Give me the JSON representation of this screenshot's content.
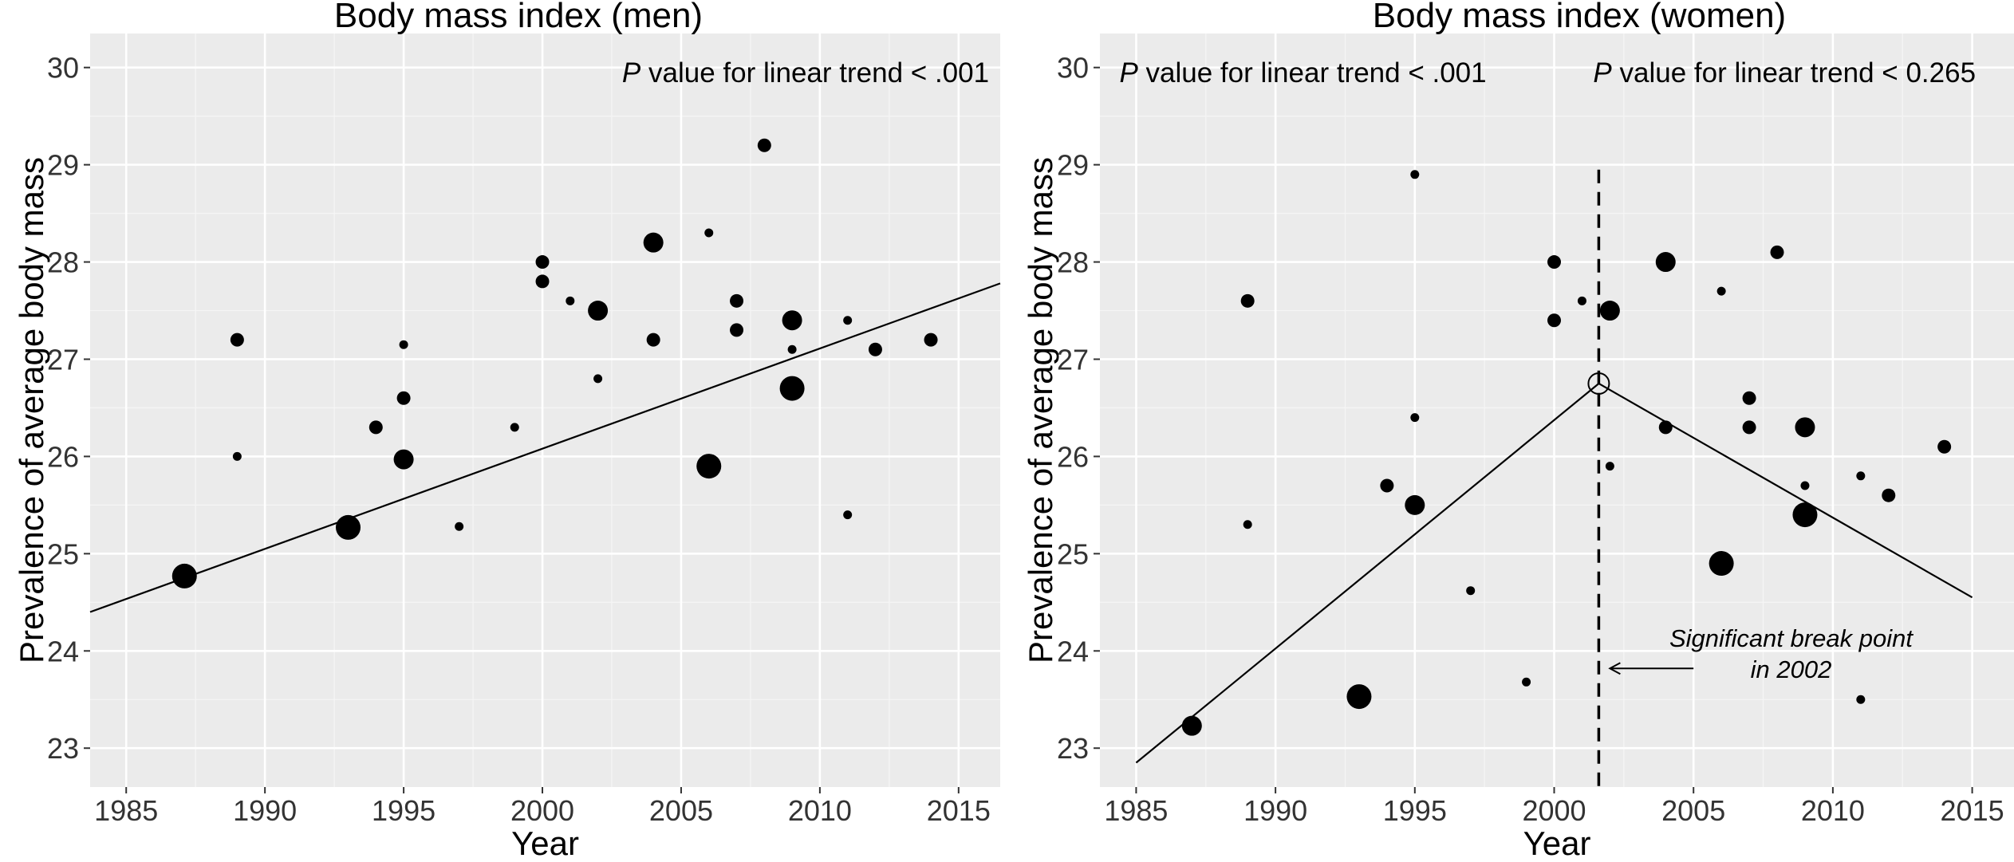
{
  "chart_data": [
    {
      "type": "scatter",
      "title": "Body mass index (men)",
      "xlabel": "Year",
      "ylabel": "Prevalence of average body mass",
      "xlim": [
        1983.7,
        2016.5
      ],
      "ylim": [
        22.6,
        30.35
      ],
      "xticks": [
        1985,
        1990,
        1995,
        2000,
        2005,
        2010,
        2015
      ],
      "yticks": [
        23,
        24,
        25,
        26,
        27,
        28,
        29,
        30
      ],
      "grid": true,
      "annotations": [
        {
          "italic": "P",
          "text": " value for linear trend < .001",
          "x": 2016.1,
          "y": 29.95,
          "anchor": "end"
        }
      ],
      "trend_lines": [
        {
          "points": [
            [
              1983.7,
              24.4
            ],
            [
              2016.5,
              27.78
            ]
          ]
        }
      ],
      "points": [
        {
          "x": 1987.1,
          "y": 24.77,
          "size": 3
        },
        {
          "x": 1989,
          "y": 27.2,
          "size": 1
        },
        {
          "x": 1989,
          "y": 26.0,
          "size": 0
        },
        {
          "x": 1993,
          "y": 25.27,
          "size": 3
        },
        {
          "x": 1994,
          "y": 26.3,
          "size": 1
        },
        {
          "x": 1995,
          "y": 27.15,
          "size": 0
        },
        {
          "x": 1995,
          "y": 26.6,
          "size": 1
        },
        {
          "x": 1995,
          "y": 25.97,
          "size": 2
        },
        {
          "x": 1997,
          "y": 25.28,
          "size": 0
        },
        {
          "x": 1999,
          "y": 26.3,
          "size": 0
        },
        {
          "x": 2000,
          "y": 28.0,
          "size": 1
        },
        {
          "x": 2000,
          "y": 27.8,
          "size": 1
        },
        {
          "x": 2001,
          "y": 27.6,
          "size": 0
        },
        {
          "x": 2002,
          "y": 27.5,
          "size": 2
        },
        {
          "x": 2002,
          "y": 26.8,
          "size": 0
        },
        {
          "x": 2004,
          "y": 28.2,
          "size": 2
        },
        {
          "x": 2004,
          "y": 27.2,
          "size": 1
        },
        {
          "x": 2006,
          "y": 28.3,
          "size": 0
        },
        {
          "x": 2006,
          "y": 25.9,
          "size": 3
        },
        {
          "x": 2007,
          "y": 27.6,
          "size": 1
        },
        {
          "x": 2007,
          "y": 27.3,
          "size": 1
        },
        {
          "x": 2008,
          "y": 29.2,
          "size": 1
        },
        {
          "x": 2009,
          "y": 27.4,
          "size": 2
        },
        {
          "x": 2009,
          "y": 27.1,
          "size": 0
        },
        {
          "x": 2009,
          "y": 26.7,
          "size": 3
        },
        {
          "x": 2011,
          "y": 27.4,
          "size": 0
        },
        {
          "x": 2011,
          "y": 25.4,
          "size": 0
        },
        {
          "x": 2012,
          "y": 27.1,
          "size": 1
        },
        {
          "x": 2014,
          "y": 27.2,
          "size": 1
        }
      ]
    },
    {
      "type": "scatter",
      "title": "Body mass index (women)",
      "xlabel": "Year",
      "ylabel": "Prevalence of average body mass",
      "xlim": [
        1983.7,
        2016.5
      ],
      "ylim": [
        22.6,
        30.35
      ],
      "xticks": [
        1985,
        1990,
        1995,
        2000,
        2005,
        2010,
        2015
      ],
      "yticks": [
        23,
        24,
        25,
        26,
        27,
        28,
        29,
        30
      ],
      "grid": true,
      "annotations": [
        {
          "italic": "P",
          "text": " value for linear trend < .001",
          "x": 1984.4,
          "y": 29.95,
          "anchor": "start"
        },
        {
          "italic": "P",
          "text": " value for linear trend < 0.265",
          "x": 2001.4,
          "y": 29.95,
          "anchor": "start"
        },
        {
          "italic": "",
          "text": "Significant break point",
          "x": 2008.5,
          "y": 24.14,
          "anchor": "middle",
          "style": "italic"
        },
        {
          "italic": "",
          "text": "in 2002",
          "x": 2008.5,
          "y": 23.82,
          "anchor": "middle",
          "style": "italic"
        }
      ],
      "break_point": {
        "x": 2001.6,
        "y": 26.75
      },
      "arrow": {
        "from": [
          2005.0,
          23.82
        ],
        "to": [
          2002.0,
          23.82
        ]
      },
      "trend_lines": [
        {
          "points": [
            [
              1985,
              22.85
            ],
            [
              2001.6,
              26.75
            ]
          ]
        },
        {
          "points": [
            [
              2001.6,
              26.75
            ],
            [
              2015,
              24.55
            ]
          ]
        }
      ],
      "points": [
        {
          "x": 1987,
          "y": 23.23,
          "size": 2
        },
        {
          "x": 1989,
          "y": 27.6,
          "size": 1
        },
        {
          "x": 1989,
          "y": 25.3,
          "size": 0
        },
        {
          "x": 1993,
          "y": 23.53,
          "size": 3
        },
        {
          "x": 1994,
          "y": 25.7,
          "size": 1
        },
        {
          "x": 1995,
          "y": 28.9,
          "size": 0
        },
        {
          "x": 1995,
          "y": 26.4,
          "size": 0
        },
        {
          "x": 1995,
          "y": 25.5,
          "size": 2
        },
        {
          "x": 1997,
          "y": 24.62,
          "size": 0
        },
        {
          "x": 1999,
          "y": 23.68,
          "size": 0
        },
        {
          "x": 2000,
          "y": 28.0,
          "size": 1
        },
        {
          "x": 2000,
          "y": 27.4,
          "size": 1
        },
        {
          "x": 2001,
          "y": 27.6,
          "size": 0
        },
        {
          "x": 2002,
          "y": 27.5,
          "size": 2
        },
        {
          "x": 2002,
          "y": 25.9,
          "size": 0
        },
        {
          "x": 2004,
          "y": 28.0,
          "size": 2
        },
        {
          "x": 2004,
          "y": 26.3,
          "size": 1
        },
        {
          "x": 2006,
          "y": 27.7,
          "size": 0
        },
        {
          "x": 2006,
          "y": 24.9,
          "size": 3
        },
        {
          "x": 2007,
          "y": 26.6,
          "size": 1
        },
        {
          "x": 2007,
          "y": 26.3,
          "size": 1
        },
        {
          "x": 2008,
          "y": 28.1,
          "size": 1
        },
        {
          "x": 2009,
          "y": 26.3,
          "size": 2
        },
        {
          "x": 2009,
          "y": 25.7,
          "size": 0
        },
        {
          "x": 2009,
          "y": 25.4,
          "size": 3
        },
        {
          "x": 2011,
          "y": 25.8,
          "size": 0
        },
        {
          "x": 2011,
          "y": 23.5,
          "size": 0
        },
        {
          "x": 2012,
          "y": 25.6,
          "size": 1
        },
        {
          "x": 2014,
          "y": 26.1,
          "size": 1
        }
      ]
    }
  ]
}
